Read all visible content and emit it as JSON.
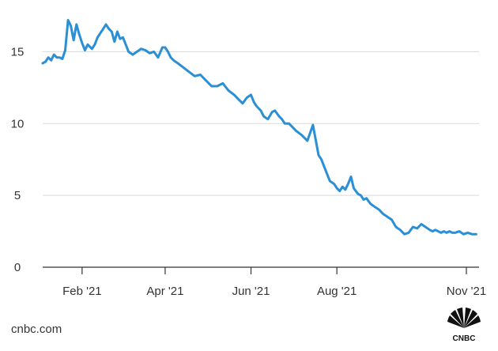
{
  "source": "cnbc.com",
  "logo_text": "CNBC",
  "colors": {
    "line": "#2a8fd4",
    "grid": "#d9d9d9",
    "axis": "#333333",
    "text": "#333333"
  },
  "chart_data": {
    "type": "line",
    "title": "",
    "xlabel": "",
    "ylabel": "",
    "ylim": [
      0,
      17.5
    ],
    "y_ticks": [
      0,
      5,
      10,
      15
    ],
    "x_ticks": [
      {
        "label": "Feb '21",
        "date": "2021-02-01"
      },
      {
        "label": "Apr '21",
        "date": "2021-04-01"
      },
      {
        "label": "Jun '21",
        "date": "2021-06-01"
      },
      {
        "label": "Aug '21",
        "date": "2021-08-01"
      },
      {
        "label": "Nov '21",
        "date": "2021-11-01"
      }
    ],
    "xlim": [
      "2021-01-04",
      "2021-11-10"
    ],
    "grid": true,
    "series": [
      {
        "x": [
          "2021-01-04",
          "2021-01-06",
          "2021-01-08",
          "2021-01-10",
          "2021-01-12",
          "2021-01-14",
          "2021-01-16",
          "2021-01-18",
          "2021-01-20",
          "2021-01-22",
          "2021-01-24",
          "2021-01-26",
          "2021-01-28",
          "2021-01-30",
          "2021-02-01",
          "2021-02-03",
          "2021-02-05",
          "2021-02-08",
          "2021-02-10",
          "2021-02-12",
          "2021-02-14",
          "2021-02-16",
          "2021-02-18",
          "2021-02-20",
          "2021-02-22",
          "2021-02-24",
          "2021-02-26",
          "2021-02-28",
          "2021-03-02",
          "2021-03-04",
          "2021-03-06",
          "2021-03-09",
          "2021-03-12",
          "2021-03-15",
          "2021-03-18",
          "2021-03-21",
          "2021-03-24",
          "2021-03-27",
          "2021-03-30",
          "2021-04-01",
          "2021-04-03",
          "2021-04-05",
          "2021-04-07",
          "2021-04-10",
          "2021-04-14",
          "2021-04-18",
          "2021-04-22",
          "2021-04-26",
          "2021-04-30",
          "2021-05-04",
          "2021-05-08",
          "2021-05-12",
          "2021-05-16",
          "2021-05-20",
          "2021-05-23",
          "2021-05-26",
          "2021-05-29",
          "2021-06-01",
          "2021-06-03",
          "2021-06-05",
          "2021-06-08",
          "2021-06-10",
          "2021-06-13",
          "2021-06-16",
          "2021-06-18",
          "2021-06-21",
          "2021-06-23",
          "2021-06-25",
          "2021-06-28",
          "2021-06-30",
          "2021-07-03",
          "2021-07-07",
          "2021-07-11",
          "2021-07-15",
          "2021-07-19",
          "2021-07-21",
          "2021-07-23",
          "2021-07-25",
          "2021-07-27",
          "2021-07-30",
          "2021-08-01",
          "2021-08-03",
          "2021-08-05",
          "2021-08-07",
          "2021-08-09",
          "2021-08-11",
          "2021-08-13",
          "2021-08-16",
          "2021-08-18",
          "2021-08-20",
          "2021-08-22",
          "2021-08-25",
          "2021-08-28",
          "2021-08-31",
          "2021-09-03",
          "2021-09-06",
          "2021-09-09",
          "2021-09-12",
          "2021-09-15",
          "2021-09-18",
          "2021-09-21",
          "2021-09-24",
          "2021-09-27",
          "2021-09-30",
          "2021-10-03",
          "2021-10-06",
          "2021-10-08",
          "2021-10-10",
          "2021-10-12",
          "2021-10-14",
          "2021-10-16",
          "2021-10-18",
          "2021-10-20",
          "2021-10-22",
          "2021-10-24",
          "2021-10-27",
          "2021-10-30",
          "2021-11-02",
          "2021-11-05",
          "2021-11-08"
        ],
        "y": [
          14.2,
          14.3,
          14.6,
          14.4,
          14.8,
          14.6,
          14.6,
          14.5,
          15.1,
          17.2,
          16.8,
          15.8,
          16.9,
          16.2,
          15.6,
          15.1,
          15.5,
          15.2,
          15.5,
          16.0,
          16.3,
          16.6,
          16.9,
          16.6,
          16.4,
          15.7,
          16.4,
          15.9,
          16.0,
          15.5,
          15.0,
          14.8,
          15.0,
          15.2,
          15.1,
          14.9,
          15.0,
          14.6,
          15.3,
          15.3,
          15.0,
          14.6,
          14.4,
          14.2,
          13.9,
          13.6,
          13.3,
          13.4,
          13.0,
          12.6,
          12.6,
          12.8,
          12.3,
          12.0,
          11.7,
          11.4,
          11.8,
          12.0,
          11.5,
          11.2,
          10.9,
          10.5,
          10.3,
          10.8,
          10.9,
          10.5,
          10.3,
          10.0,
          10.0,
          9.8,
          9.5,
          9.2,
          8.8,
          9.9,
          7.8,
          7.5,
          7.0,
          6.5,
          6.0,
          5.8,
          5.5,
          5.3,
          5.6,
          5.4,
          5.8,
          6.3,
          5.5,
          5.1,
          5.0,
          4.7,
          4.8,
          4.4,
          4.2,
          4.0,
          3.7,
          3.5,
          3.3,
          2.8,
          2.6,
          2.3,
          2.4,
          2.8,
          2.7,
          3.0,
          2.8,
          2.6,
          2.5,
          2.6,
          2.5,
          2.4,
          2.5,
          2.4,
          2.5,
          2.4,
          2.4,
          2.5,
          2.3,
          2.4,
          2.3,
          2.3
        ]
      }
    ]
  }
}
